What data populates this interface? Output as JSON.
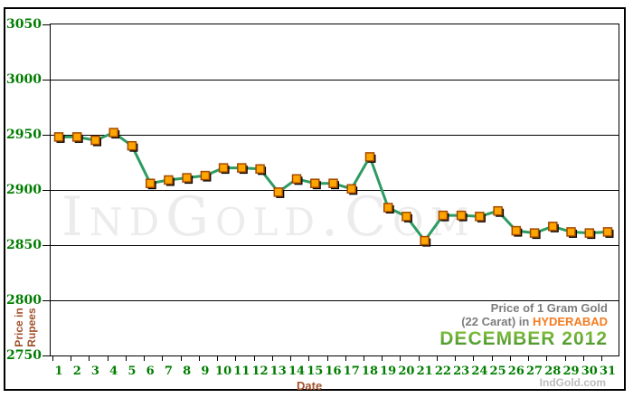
{
  "chart_data": {
    "type": "line",
    "title": "Price of 1 Gram Gold (22 Carat) in HYDERABAD - DECEMBER 2012",
    "xlabel": "Date",
    "ylabel": "Price in Rupees",
    "x": [
      1,
      2,
      3,
      4,
      5,
      6,
      7,
      8,
      9,
      10,
      11,
      12,
      13,
      14,
      15,
      16,
      17,
      18,
      19,
      20,
      21,
      22,
      23,
      24,
      25,
      26,
      27,
      28,
      29,
      30,
      31
    ],
    "values": [
      2948,
      2948,
      2945,
      2952,
      2940,
      2906,
      2909,
      2911,
      2913,
      2920,
      2920,
      2919,
      2898,
      2910,
      2906,
      2906,
      2901,
      2930,
      2884,
      2876,
      2854,
      2877,
      2877,
      2876,
      2881,
      2863,
      2861,
      2867,
      2862,
      2861,
      2862
    ],
    "ylim": [
      2750,
      3050
    ],
    "yticks": [
      2750,
      2800,
      2850,
      2900,
      2950,
      3000,
      3050
    ],
    "grid": "horizontal",
    "legend": "none",
    "line_color": "#2e9b62",
    "marker_fill": "#ffa500",
    "marker_border": "#a34a00",
    "marker_shadow": "#000000",
    "tick_label_color": "#007d00",
    "axis_title_color": "#a0522d"
  },
  "labels": {
    "ylabel_line1": "Price in",
    "ylabel_line2": "Rupees",
    "xlabel": "Date"
  },
  "title_block": {
    "line1": "Price of 1 Gram Gold",
    "line2_prefix": "(22 Carat) in ",
    "line2_city": "HYDERABAD",
    "line3": "DECEMBER 2012"
  },
  "watermark": "IndGold.Com",
  "footer_brand": "IndGold.com",
  "colors": {
    "city_accent": "#f47b20",
    "month_green": "#55a630",
    "title_gray": "#7d7d7d",
    "watermark_gray": "#ececec"
  }
}
